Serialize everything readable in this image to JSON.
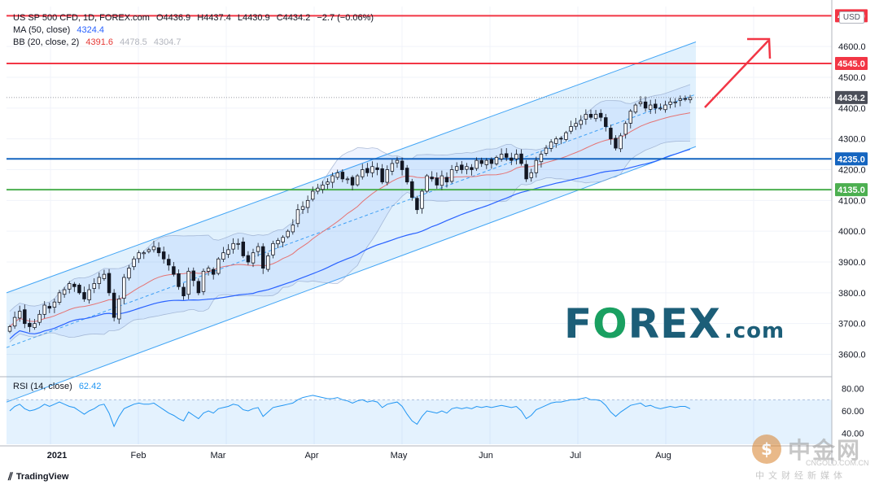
{
  "legend": {
    "symbol": "US SP 500 CFD, 1D, FOREX.com",
    "ohlc": {
      "o": "O4436.9",
      "h": "H4437.4",
      "l": "L4430.9",
      "c": "C4434.2",
      "chg": "−2.7 (−0.06%)"
    },
    "ma_label": "MA (50, close)",
    "ma_value": "4324.4",
    "bb_label": "BB (20, close, 2)",
    "bb_basis": "4391.6",
    "bb_upper": "4478.5",
    "bb_lower": "4304.7",
    "rsi_label": "RSI (14, close)",
    "rsi_value": "62.42"
  },
  "currency": "USD",
  "branding": {
    "tradingview": "TradingView",
    "forex_logo": "FOREX.com",
    "watermark_cn": "中金网",
    "watermark_en": "CNGOLD.COM.CN",
    "watermark_sub": "中文财经新媒体"
  },
  "colors": {
    "up": "#ffffff",
    "down": "#131722",
    "ma": "#2962ff",
    "bb": "#e57373",
    "channel": "#42a5f5",
    "red_level": "#f23645",
    "blue_level": "#1565c0",
    "green_level": "#4caf50",
    "rsi": "#2196f3"
  },
  "chart_data": {
    "type": "candlestick",
    "y_ticks": [
      3600,
      3700,
      3800,
      3900,
      4000,
      4100,
      4200,
      4300,
      4400,
      4500,
      4600
    ],
    "y_range": [
      3530,
      4730
    ],
    "x_labels": [
      "2021",
      "Feb",
      "Mar",
      "Apr",
      "May",
      "Jun",
      "Jul",
      "Aug"
    ],
    "levels": [
      {
        "value": 4700.0,
        "label": "4700.0",
        "color": "#f23645"
      },
      {
        "value": 4545.0,
        "label": "4545.0",
        "color": "#f23645"
      },
      {
        "value": 4235.0,
        "label": "4235.0",
        "color": "#1565c0"
      },
      {
        "value": 4135.0,
        "label": "4135.0",
        "color": "#4caf50"
      }
    ],
    "last_price": {
      "value": 4434.2,
      "label": "4434.2"
    },
    "closes": [
      3690,
      3720,
      3740,
      3700,
      3690,
      3700,
      3730,
      3760,
      3750,
      3770,
      3800,
      3810,
      3830,
      3820,
      3800,
      3780,
      3810,
      3830,
      3850,
      3860,
      3800,
      3720,
      3780,
      3850,
      3880,
      3910,
      3930,
      3930,
      3940,
      3950,
      3930,
      3910,
      3890,
      3860,
      3820,
      3790,
      3870,
      3840,
      3800,
      3870,
      3880,
      3860,
      3910,
      3930,
      3940,
      3960,
      3960,
      3920,
      3900,
      3930,
      3950,
      3880,
      3920,
      3960,
      3970,
      3980,
      4000,
      4020,
      4070,
      4080,
      4100,
      4130,
      4140,
      4150,
      4160,
      4180,
      4190,
      4170,
      4170,
      4150,
      4180,
      4200,
      4190,
      4210,
      4200,
      4160,
      4200,
      4220,
      4230,
      4200,
      4160,
      4110,
      4070,
      4130,
      4180,
      4170,
      4150,
      4180,
      4160,
      4200,
      4210,
      4200,
      4210,
      4200,
      4230,
      4220,
      4230,
      4220,
      4240,
      4250,
      4240,
      4230,
      4250,
      4220,
      4170,
      4190,
      4230,
      4250,
      4270,
      4290,
      4300,
      4300,
      4320,
      4340,
      4350,
      4360,
      4380,
      4370,
      4380,
      4370,
      4340,
      4300,
      4270,
      4310,
      4350,
      4390,
      4410,
      4420,
      4400,
      4410,
      4400,
      4400,
      4410,
      4420,
      4420,
      4430,
      4430,
      4434
    ],
    "rsi_ticks": [
      40,
      60,
      80
    ],
    "rsi_range": [
      30,
      90
    ],
    "rsi_band": [
      30,
      70
    ],
    "rsi": [
      60,
      64,
      66,
      62,
      60,
      61,
      63,
      66,
      64,
      66,
      68,
      66,
      64,
      63,
      60,
      57,
      60,
      62,
      65,
      66,
      58,
      46,
      55,
      62,
      64,
      66,
      67,
      66,
      66,
      67,
      64,
      61,
      58,
      56,
      53,
      51,
      59,
      56,
      53,
      58,
      60,
      58,
      62,
      63,
      64,
      66,
      65,
      61,
      60,
      62,
      63,
      55,
      59,
      63,
      64,
      65,
      66,
      67,
      70,
      72,
      73,
      74,
      73,
      72,
      71,
      71,
      72,
      70,
      69,
      67,
      69,
      70,
      68,
      69,
      68,
      63,
      66,
      67,
      68,
      64,
      57,
      51,
      48,
      55,
      60,
      59,
      58,
      60,
      58,
      62,
      63,
      62,
      63,
      62,
      64,
      63,
      64,
      63,
      64,
      65,
      64,
      63,
      64,
      60,
      53,
      56,
      61,
      63,
      65,
      67,
      68,
      68,
      69,
      70,
      70,
      71,
      72,
      70,
      70,
      69,
      65,
      59,
      55,
      59,
      62,
      65,
      66,
      67,
      64,
      65,
      63,
      62,
      63,
      64,
      63,
      64,
      64,
      62
    ]
  }
}
